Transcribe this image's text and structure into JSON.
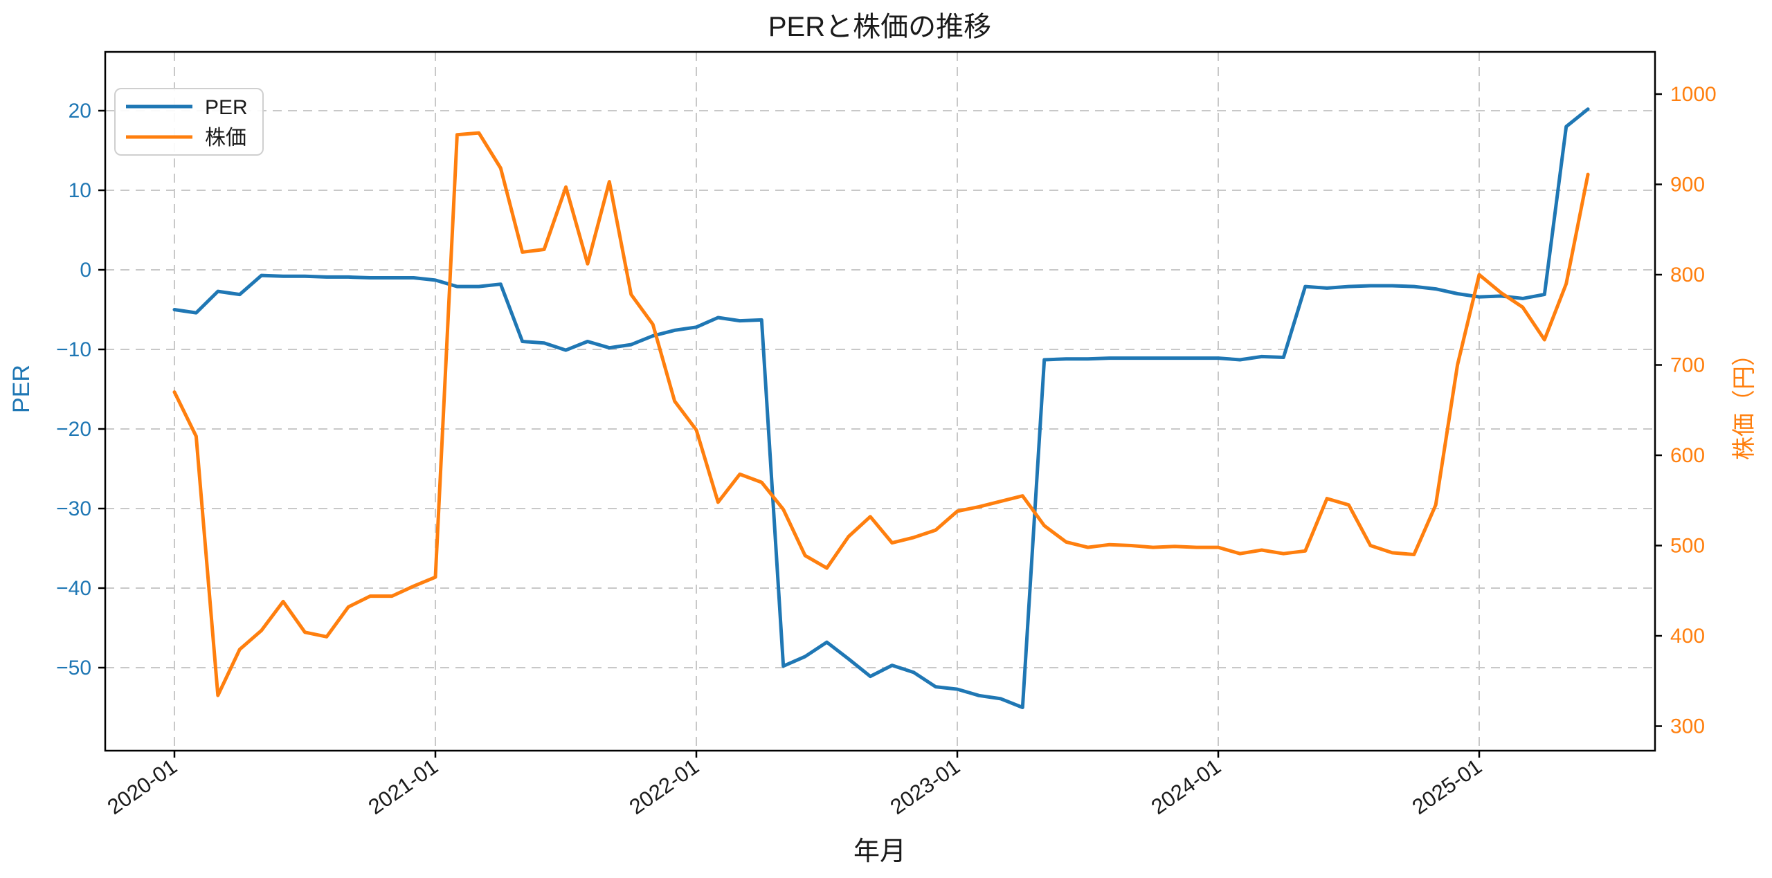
{
  "title": "PERと株価の推移",
  "chart_data": {
    "type": "line",
    "title": "PERと株価の推移",
    "xlabel": "年月",
    "ylabel_left": "PER",
    "ylabel_right": "株価（円）",
    "x_tick_labels": [
      "2020-01",
      "2021-01",
      "2022-01",
      "2023-01",
      "2024-01",
      "2025-01"
    ],
    "y_left_ticks": [
      20,
      10,
      0,
      -10,
      -20,
      -30,
      -40,
      -50
    ],
    "y_right_ticks": [
      1000,
      900,
      800,
      700,
      600,
      500,
      400,
      300
    ],
    "ylim_left_approx": [
      -60,
      27
    ],
    "ylim_right_approx": [
      265,
      1048
    ],
    "grid": true,
    "grid_style": "dashed",
    "legend": {
      "position": "upper left",
      "entries": [
        "PER",
        "株価"
      ]
    },
    "colors": {
      "per": "#1f77b4",
      "kabuka": "#ff7f0e"
    },
    "months": [
      "2020-01",
      "2020-02",
      "2020-03",
      "2020-04",
      "2020-05",
      "2020-06",
      "2020-07",
      "2020-08",
      "2020-09",
      "2020-10",
      "2020-11",
      "2020-12",
      "2021-01",
      "2021-02",
      "2021-03",
      "2021-04",
      "2021-05",
      "2021-06",
      "2021-07",
      "2021-08",
      "2021-09",
      "2021-10",
      "2021-11",
      "2021-12",
      "2022-01",
      "2022-02",
      "2022-03",
      "2022-04",
      "2022-05",
      "2022-06",
      "2022-07",
      "2022-08",
      "2022-09",
      "2022-10",
      "2022-11",
      "2022-12",
      "2023-01",
      "2023-02",
      "2023-03",
      "2023-04",
      "2023-05",
      "2023-06",
      "2023-07",
      "2023-08",
      "2023-09",
      "2023-10",
      "2023-11",
      "2023-12",
      "2024-01",
      "2024-02",
      "2024-03",
      "2024-04",
      "2024-05",
      "2024-06",
      "2024-07",
      "2024-08",
      "2024-09",
      "2024-10",
      "2024-11",
      "2024-12",
      "2025-01",
      "2025-02",
      "2025-03",
      "2025-04",
      "2025-05",
      "2025-06"
    ],
    "series": [
      {
        "name": "PER",
        "axis": "left",
        "color": "#1f77b4",
        "values": [
          -5.0,
          -5.4,
          -2.7,
          -3.1,
          -0.7,
          -0.8,
          -0.8,
          -0.9,
          -0.9,
          -1.0,
          -1.0,
          -1.0,
          -1.3,
          -2.1,
          -2.1,
          -1.8,
          -9.0,
          -9.2,
          -10.1,
          -9.0,
          -9.8,
          -9.4,
          -8.3,
          -7.6,
          -7.2,
          -6.0,
          -6.4,
          -6.3,
          -49.8,
          -48.6,
          -46.8,
          -48.9,
          -51.1,
          -49.7,
          -50.6,
          -52.4,
          -52.7,
          -53.5,
          -53.9,
          -55.0,
          -11.3,
          -11.2,
          -11.2,
          -11.1,
          -11.1,
          -11.1,
          -11.1,
          -11.1,
          -11.1,
          -11.3,
          -10.9,
          -11.0,
          -2.1,
          -2.3,
          -2.1,
          -2.0,
          -2.0,
          -2.1,
          -2.4,
          -3.0,
          -3.4,
          -3.3,
          -3.6,
          -3.1,
          18.0,
          20.2
        ]
      },
      {
        "name": "株価",
        "axis": "right",
        "color": "#ff7f0e",
        "values": [
          670,
          621,
          334,
          385,
          406,
          438,
          404,
          399,
          432,
          444,
          444,
          455,
          465,
          955,
          957,
          918,
          825,
          828,
          897,
          812,
          903,
          778,
          745,
          660,
          628,
          548,
          579,
          570,
          540,
          489,
          475,
          510,
          532,
          503,
          509,
          517,
          538,
          543,
          549,
          555,
          522,
          504,
          498,
          501,
          500,
          498,
          499,
          498,
          498,
          491,
          495,
          491,
          494,
          552,
          545,
          500,
          492,
          490,
          545,
          700,
          800,
          780,
          764,
          728,
          790,
          911
        ]
      }
    ]
  }
}
